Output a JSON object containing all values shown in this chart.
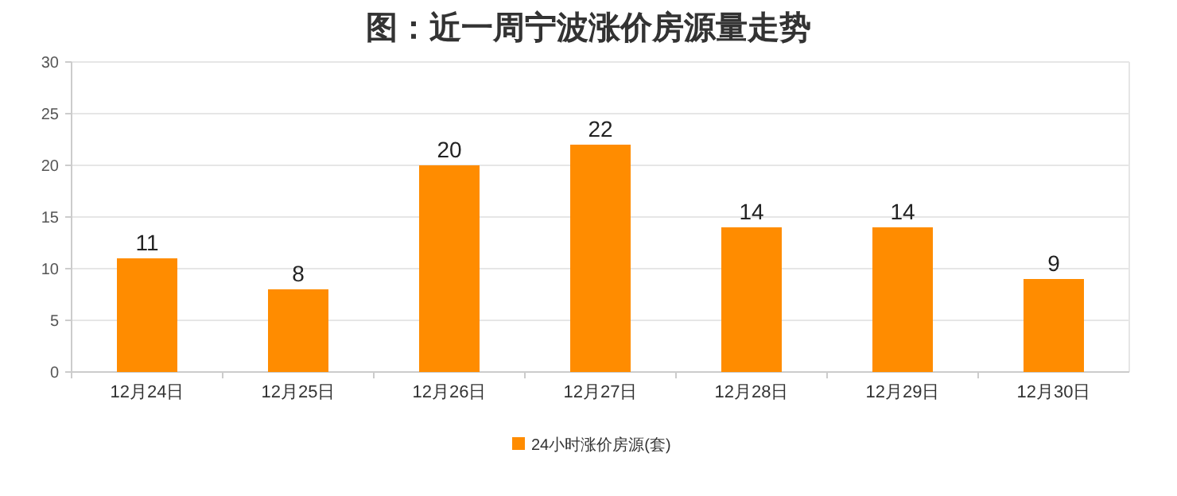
{
  "chart_data": {
    "type": "bar",
    "title": "图：近一周宁波涨价房源量走势",
    "categories": [
      "12月24日",
      "12月25日",
      "12月26日",
      "12月27日",
      "12月28日",
      "12月29日",
      "12月30日"
    ],
    "series": [
      {
        "name": "24小时涨价房源(套)",
        "color": "#ff8c00",
        "values": [
          11,
          8,
          20,
          22,
          14,
          14,
          9
        ]
      }
    ],
    "ylim": [
      0,
      30
    ],
    "yticks": [
      0,
      5,
      10,
      15,
      20,
      25,
      30
    ],
    "grid": "y",
    "legend": "bottom",
    "data_labels": true
  }
}
